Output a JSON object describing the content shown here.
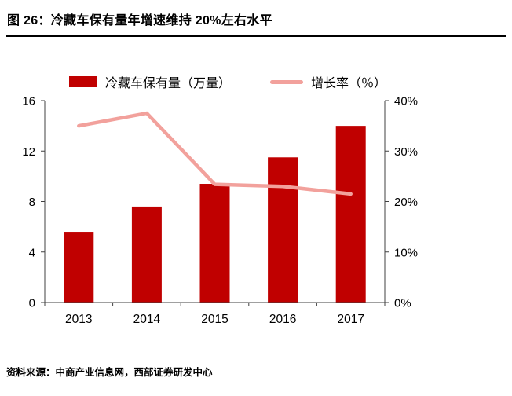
{
  "header": {
    "title": "图 26：冷藏车保有量年增速维持 20%左右水平"
  },
  "chart_data": {
    "type": "bar",
    "subtype": "bar+line combo, dual axis",
    "categories": [
      "2013",
      "2014",
      "2015",
      "2016",
      "2017"
    ],
    "series": [
      {
        "name": "冷藏车保有量（万量）",
        "type": "bar",
        "axis": "left",
        "values": [
          5.6,
          7.6,
          9.4,
          11.5,
          14.0
        ],
        "color": "#c00000"
      },
      {
        "name": "增长率（％）",
        "type": "line",
        "axis": "right",
        "values": [
          35,
          37.5,
          23.4,
          23,
          21.5
        ],
        "color": "#f2a19c"
      }
    ],
    "left_axis": {
      "min": 0,
      "max": 16,
      "ticks": [
        0,
        4,
        8,
        12,
        16
      ]
    },
    "right_axis": {
      "min": 0,
      "max": 40,
      "tick_values": [
        0,
        10,
        20,
        30,
        40
      ],
      "tick_labels": [
        "0%",
        "10%",
        "20%",
        "30%",
        "40%"
      ]
    },
    "legend_position": "top",
    "grid": false
  },
  "footer": {
    "source": "资料来源：中商产业信息网，西部证券研发中心"
  },
  "colors": {
    "bar": "#c00000",
    "line": "#f2a19c",
    "axis": "#404040",
    "title_rule": "#000000",
    "footer_rule": "#a6a6a6"
  }
}
